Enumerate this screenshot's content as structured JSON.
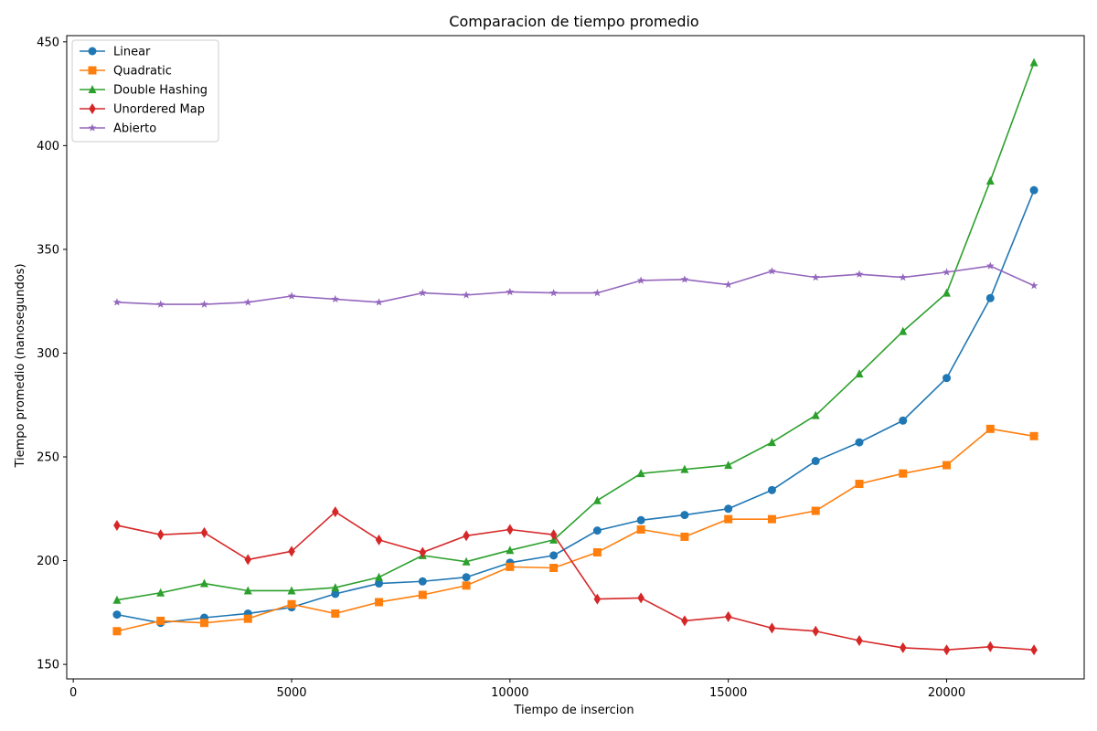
{
  "chart_data": {
    "type": "line",
    "title": "Comparacion de tiempo promedio",
    "xlabel": "Tiempo de insercion",
    "ylabel": "Tiempo promedio (nanosegundos)",
    "xlim": [
      -150,
      23150
    ],
    "ylim": [
      143,
      453
    ],
    "xticks": [
      0,
      5000,
      10000,
      15000,
      20000
    ],
    "xtick_labels": [
      "0",
      "5000",
      "10000",
      "15000",
      "20000"
    ],
    "yticks": [
      150,
      200,
      250,
      300,
      350,
      400,
      450
    ],
    "ytick_labels": [
      "150",
      "200",
      "250",
      "300",
      "350",
      "400",
      "450"
    ],
    "grid": false,
    "legend_position": "top-left",
    "x": [
      1000,
      2000,
      3000,
      4000,
      5000,
      6000,
      7000,
      8000,
      9000,
      10000,
      11000,
      12000,
      13000,
      14000,
      15000,
      16000,
      17000,
      18000,
      19000,
      20000,
      21000,
      22000
    ],
    "series": [
      {
        "name": "Linear",
        "color": "#1f77b4",
        "marker": "circle",
        "values": [
          174,
          170,
          172.5,
          174.5,
          177.5,
          184,
          189,
          190,
          192,
          199,
          202.5,
          214.5,
          219.5,
          222,
          225,
          234,
          248,
          257,
          267.5,
          288,
          326.5,
          378.5
        ]
      },
      {
        "name": "Quadratic",
        "color": "#ff7f0e",
        "marker": "square",
        "values": [
          166,
          171,
          170,
          172,
          179,
          174.5,
          180,
          183.5,
          188,
          197,
          196.5,
          204,
          215,
          211.5,
          220,
          220,
          224,
          237,
          242,
          246,
          263.5,
          260
        ]
      },
      {
        "name": "Double Hashing",
        "color": "#2ca02c",
        "marker": "triangle",
        "values": [
          181,
          184.5,
          189,
          185.5,
          185.5,
          187,
          192,
          202.5,
          199.5,
          205,
          210,
          229,
          242,
          244,
          246,
          257,
          270,
          290,
          310.5,
          329,
          383,
          440
        ]
      },
      {
        "name": "Unordered Map",
        "color": "#d62728",
        "marker": "diamond",
        "values": [
          217,
          212.5,
          213.5,
          200.5,
          204.5,
          223.5,
          210,
          204,
          212,
          215,
          212.5,
          181.5,
          182,
          171,
          173,
          167.5,
          166,
          161.5,
          158,
          157,
          158.5,
          157
        ]
      },
      {
        "name": "Abierto",
        "color": "#9467bd",
        "marker": "star",
        "values": [
          324.5,
          323.5,
          323.5,
          324.5,
          327.5,
          326,
          324.5,
          329,
          328,
          329.5,
          329,
          329,
          335,
          335.5,
          333,
          339.5,
          336.5,
          338,
          336.5,
          339,
          342,
          332.5
        ]
      }
    ]
  }
}
